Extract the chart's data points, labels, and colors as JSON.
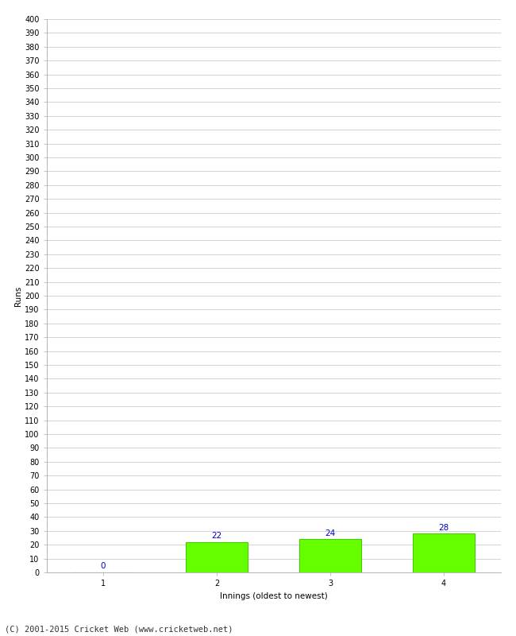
{
  "categories": [
    1,
    2,
    3,
    4
  ],
  "values": [
    0,
    22,
    24,
    28
  ],
  "bar_color": "#66ff00",
  "bar_edge_color": "#44cc00",
  "label_color": "#0000cc",
  "ylabel": "Runs",
  "xlabel": "Innings (oldest to newest)",
  "ylim": [
    0,
    400
  ],
  "ytick_step": 10,
  "background_color": "#ffffff",
  "grid_color": "#cccccc",
  "footer": "(C) 2001-2015 Cricket Web (www.cricketweb.net)",
  "label_fontsize": 7.5,
  "axis_tick_fontsize": 7,
  "axis_label_fontsize": 7.5,
  "footer_fontsize": 7.5,
  "bar_width": 0.55
}
